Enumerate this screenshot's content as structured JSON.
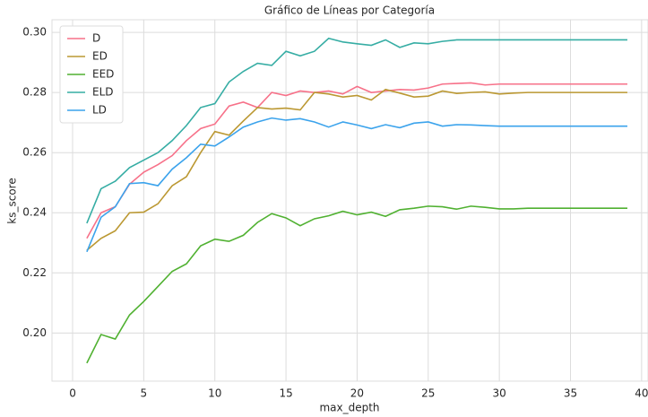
{
  "chart_data": {
    "type": "line",
    "title": "Gráfico de Líneas por Categoría",
    "x_label": "max_depth",
    "y_label": "ks_score",
    "x": [
      1,
      2,
      3,
      4,
      5,
      6,
      7,
      8,
      9,
      10,
      11,
      12,
      13,
      14,
      15,
      16,
      17,
      18,
      19,
      20,
      21,
      22,
      23,
      24,
      25,
      26,
      27,
      28,
      29,
      30,
      31,
      32,
      33,
      34,
      35,
      36,
      37,
      38,
      39
    ],
    "series": [
      {
        "name": "D",
        "color": "#f77189",
        "values": [
          0.2315,
          0.24,
          0.242,
          0.2495,
          0.2535,
          0.256,
          0.259,
          0.264,
          0.268,
          0.2695,
          0.2755,
          0.2768,
          0.275,
          0.28,
          0.279,
          0.2805,
          0.28,
          0.2805,
          0.2795,
          0.282,
          0.28,
          0.2805,
          0.281,
          0.2808,
          0.2815,
          0.2828,
          0.283,
          0.2832,
          0.2825,
          0.2828,
          0.2828,
          0.2828,
          0.2828,
          0.2828,
          0.2828,
          0.2828,
          0.2828,
          0.2828,
          0.2828
        ]
      },
      {
        "name": "ED",
        "color": "#bb9832",
        "values": [
          0.2275,
          0.2315,
          0.234,
          0.24,
          0.2402,
          0.243,
          0.249,
          0.252,
          0.26,
          0.267,
          0.2658,
          0.2705,
          0.275,
          0.2745,
          0.2748,
          0.2742,
          0.28,
          0.2795,
          0.2785,
          0.279,
          0.2775,
          0.281,
          0.2798,
          0.2785,
          0.2788,
          0.2805,
          0.2797,
          0.28,
          0.2802,
          0.2795,
          0.2798,
          0.28,
          0.28,
          0.28,
          0.28,
          0.28,
          0.28,
          0.28,
          0.28
        ]
      },
      {
        "name": "EED",
        "color": "#50b131",
        "values": [
          0.19,
          0.1995,
          0.198,
          0.206,
          0.2105,
          0.2155,
          0.2205,
          0.223,
          0.229,
          0.2312,
          0.2305,
          0.2325,
          0.2368,
          0.2397,
          0.2383,
          0.2357,
          0.238,
          0.239,
          0.2405,
          0.2393,
          0.2402,
          0.2388,
          0.241,
          0.2415,
          0.2422,
          0.242,
          0.2412,
          0.2422,
          0.2418,
          0.2413,
          0.2413,
          0.2415,
          0.2415,
          0.2415,
          0.2415,
          0.2415,
          0.2415,
          0.2415,
          0.2415
        ]
      },
      {
        "name": "ELD",
        "color": "#36ada4",
        "values": [
          0.2365,
          0.248,
          0.2505,
          0.255,
          0.2575,
          0.26,
          0.264,
          0.269,
          0.275,
          0.2763,
          0.2835,
          0.287,
          0.2897,
          0.289,
          0.2937,
          0.2922,
          0.2937,
          0.298,
          0.2968,
          0.2962,
          0.2957,
          0.2975,
          0.295,
          0.2965,
          0.2962,
          0.297,
          0.2975,
          0.2975,
          0.2975,
          0.2975,
          0.2975,
          0.2975,
          0.2975,
          0.2975,
          0.2975,
          0.2975,
          0.2975,
          0.2975,
          0.2975
        ]
      },
      {
        "name": "LD",
        "color": "#3ba3ec",
        "values": [
          0.227,
          0.2385,
          0.242,
          0.2497,
          0.25,
          0.249,
          0.2545,
          0.2583,
          0.2628,
          0.2622,
          0.2652,
          0.2685,
          0.2702,
          0.2715,
          0.2708,
          0.2713,
          0.2702,
          0.2685,
          0.2702,
          0.2692,
          0.268,
          0.2693,
          0.2683,
          0.2698,
          0.2702,
          0.2688,
          0.2693,
          0.2692,
          0.269,
          0.2688,
          0.2688,
          0.2688,
          0.2688,
          0.2688,
          0.2688,
          0.2688,
          0.2688,
          0.2688,
          0.2688
        ]
      }
    ],
    "xlim": [
      -1.45,
      40.45
    ],
    "xticks": [
      0,
      5,
      10,
      15,
      20,
      25,
      30,
      35,
      40
    ],
    "ylim": [
      0.184,
      0.3042
    ],
    "yticks": [
      {
        "value": 0.2,
        "label": "0.20"
      },
      {
        "value": 0.22,
        "label": "0.22"
      },
      {
        "value": 0.24,
        "label": "0.24"
      },
      {
        "value": 0.26,
        "label": "0.26"
      },
      {
        "value": 0.28,
        "label": "0.28"
      },
      {
        "value": 0.3,
        "label": "0.30"
      }
    ],
    "grid": true,
    "legend": "upper left"
  }
}
